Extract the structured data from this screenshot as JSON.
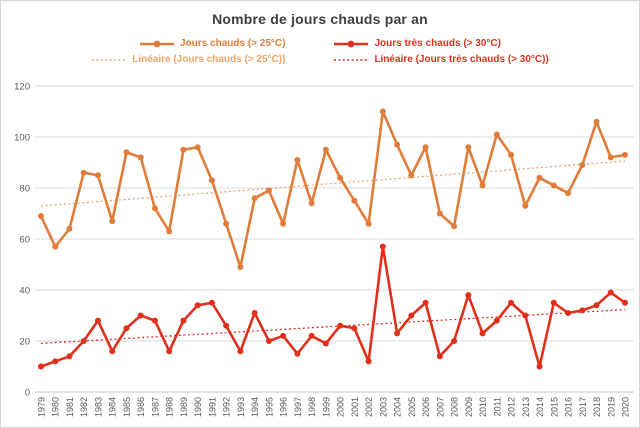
{
  "title": "Nombre de jours chauds par an",
  "legend": [
    {
      "label": "Jours chauds (> 25°C)",
      "style": "line-marker",
      "color": "#e07c39"
    },
    {
      "label": "Jours très chauds (> 30°C)",
      "style": "line-marker",
      "color": "#e0301c"
    },
    {
      "label": "Linéaire (Jours chauds (> 25°C))",
      "style": "dotted",
      "color": "#eda266"
    },
    {
      "label": "Linéaire (Jours très chauds (> 30°C))",
      "style": "dotted",
      "color": "#e0301c"
    }
  ],
  "chart_data": {
    "type": "line",
    "title": "Nombre de jours chauds par an",
    "xlabel": "",
    "ylabel": "",
    "ylim": [
      0,
      120
    ],
    "yticks": [
      0,
      20,
      40,
      60,
      80,
      100,
      120
    ],
    "grid": "horizontal",
    "legend_position": "top",
    "x": [
      1979,
      1980,
      1981,
      1982,
      1983,
      1984,
      1985,
      1986,
      1987,
      1988,
      1989,
      1990,
      1991,
      1992,
      1993,
      1994,
      1995,
      1996,
      1997,
      1998,
      1999,
      2000,
      2001,
      2002,
      2003,
      2004,
      2005,
      2006,
      2007,
      2008,
      2009,
      2010,
      2011,
      2012,
      2013,
      2014,
      2015,
      2016,
      2017,
      2018,
      2019,
      2020
    ],
    "series": [
      {
        "name": "Jours chauds (> 25°C)",
        "color": "#e07c39",
        "trend_color": "#eda266",
        "values": [
          69,
          57,
          64,
          86,
          85,
          67,
          94,
          92,
          72,
          63,
          95,
          96,
          83,
          66,
          49,
          76,
          79,
          66,
          91,
          74,
          95,
          84,
          75,
          66,
          110,
          97,
          85,
          96,
          70,
          65,
          96,
          81,
          101,
          93,
          73,
          84,
          81,
          78,
          89,
          106,
          92,
          93
        ]
      },
      {
        "name": "Jours très chauds (> 30°C)",
        "color": "#e0301c",
        "trend_color": "#e0301c",
        "values": [
          10,
          12,
          14,
          20,
          28,
          16,
          25,
          30,
          28,
          16,
          28,
          34,
          35,
          26,
          16,
          31,
          20,
          22,
          15,
          22,
          19,
          26,
          25,
          12,
          57,
          23,
          30,
          35,
          14,
          20,
          38,
          23,
          28,
          35,
          30,
          10,
          35,
          31,
          32,
          34,
          39,
          35
        ]
      }
    ],
    "trendlines": [
      {
        "for": "Jours chauds (> 25°C)",
        "fit": "linear"
      },
      {
        "for": "Jours très chauds (> 30°C)",
        "fit": "linear"
      }
    ]
  },
  "axis_style": {
    "label_color": "#595959",
    "gridline_color": "#d9d9d9",
    "axisline_color": "#c6c6c6"
  }
}
